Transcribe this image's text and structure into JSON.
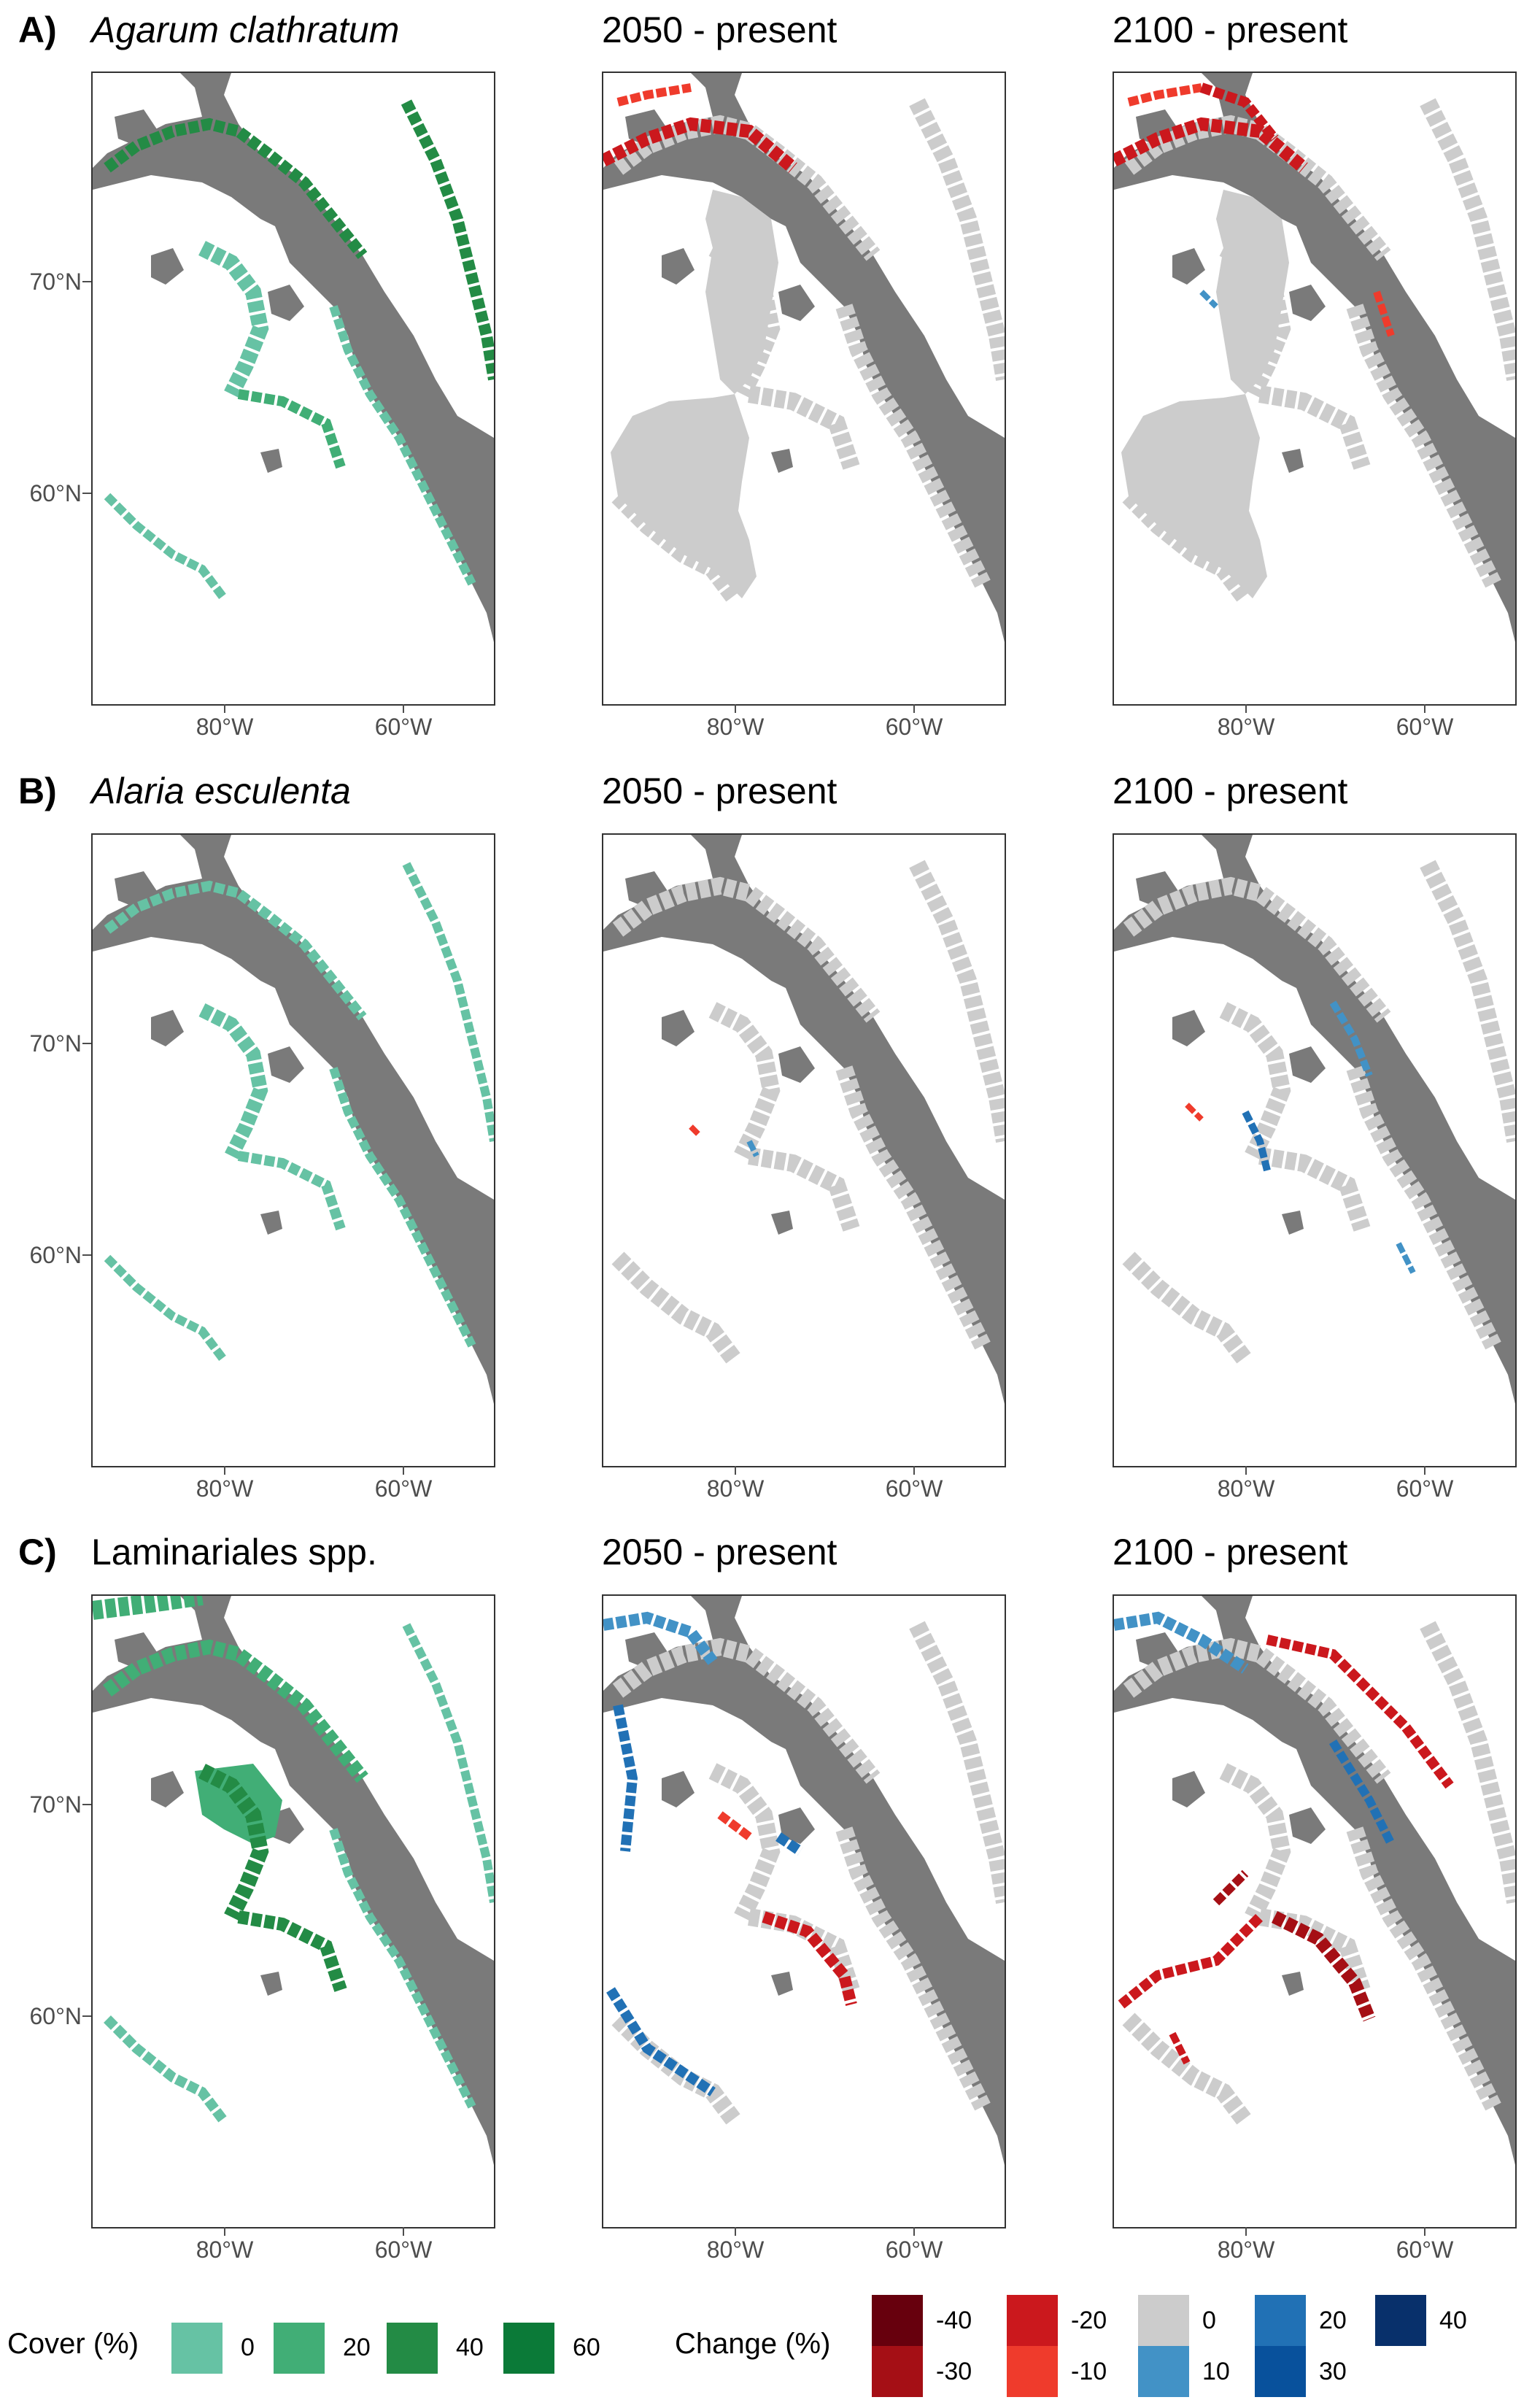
{
  "rows": [
    {
      "letter": "A)",
      "species": "Agarum clathratum",
      "italic": true,
      "titles": [
        "2050 - present",
        "2100 - present"
      ]
    },
    {
      "letter": "B)",
      "species": "Alaria esculenta",
      "italic": true,
      "titles": [
        "2050 - present",
        "2100 - present"
      ]
    },
    {
      "letter": "C)",
      "species": "Laminariales spp.",
      "italic": false,
      "titles": [
        "2050 - present",
        "2100 - present"
      ]
    }
  ],
  "axes": {
    "y_labels": [
      "70°N",
      "60°N"
    ],
    "x_labels": [
      "80°W",
      "60°W"
    ]
  },
  "cover_legend": {
    "title": "Cover (%)",
    "items": [
      {
        "label": "0",
        "color": "#66c2a4"
      },
      {
        "label": "20",
        "color": "#41ae76"
      },
      {
        "label": "40",
        "color": "#238b45"
      },
      {
        "label": "60",
        "color": "#0b7a38"
      }
    ]
  },
  "change_legend": {
    "title": "Change (%)",
    "items": [
      {
        "label": "-40",
        "color": "#67000d"
      },
      {
        "label": "-30",
        "color": "#a50f15"
      },
      {
        "label": "-20",
        "color": "#cb181d"
      },
      {
        "label": "-10",
        "color": "#ef3b2c"
      },
      {
        "label": "0",
        "color": "#cccccc"
      },
      {
        "label": "10",
        "color": "#4292c6"
      },
      {
        "label": "20",
        "color": "#2171b5"
      },
      {
        "label": "30",
        "color": "#08519c"
      },
      {
        "label": "40",
        "color": "#08306b"
      }
    ]
  },
  "colors": {
    "land": "#7a7a7a",
    "sea": "#ffffff",
    "no_change": "#cccccc"
  }
}
